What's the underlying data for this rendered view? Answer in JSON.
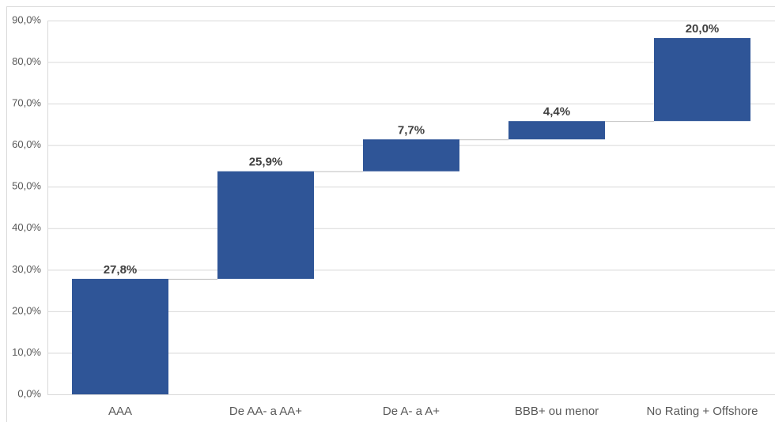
{
  "chart_data": {
    "type": "waterfall",
    "categories": [
      "AAA",
      "De AA- a AA+",
      "De A- a A+",
      "BBB+ ou menor",
      "No Rating + Offshore"
    ],
    "values": [
      27.8,
      25.9,
      7.7,
      4.4,
      20.0
    ],
    "value_labels": [
      "27,8%",
      "25,9%",
      "7,7%",
      "4,4%",
      "20,0%"
    ],
    "color": "#2f5597",
    "ylim": [
      0,
      90
    ],
    "yticks": [
      {
        "value": 0,
        "label": "0,0%"
      },
      {
        "value": 10,
        "label": "10,0%"
      },
      {
        "value": 20,
        "label": "20,0%"
      },
      {
        "value": 30,
        "label": "30,0%"
      },
      {
        "value": 40,
        "label": "40,0%"
      },
      {
        "value": 50,
        "label": "50,0%"
      },
      {
        "value": 60,
        "label": "60,0%"
      },
      {
        "value": 70,
        "label": "70,0%"
      },
      {
        "value": 80,
        "label": "80,0%"
      },
      {
        "value": 90,
        "label": "90,0%"
      }
    ],
    "grid": true
  }
}
